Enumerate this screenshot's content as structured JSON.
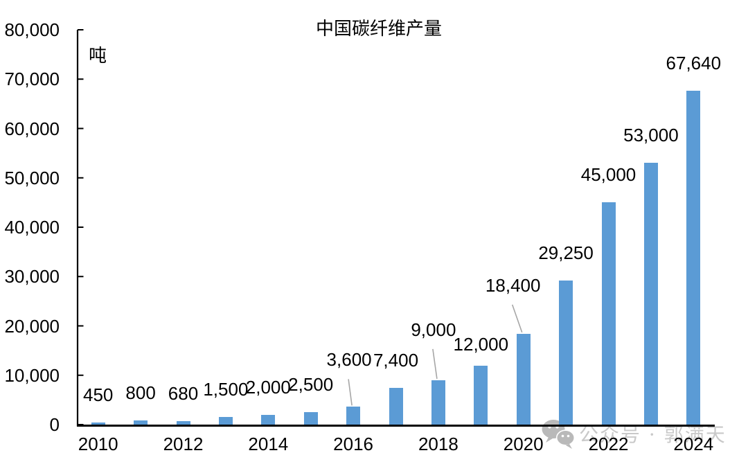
{
  "watermark": {
    "text": "公众号 · 郭满天",
    "icon": "wechat-icon",
    "text_color": "#c9c9c9"
  },
  "chart_data": {
    "type": "bar",
    "title": "中国碳纤维产量",
    "unit_label": "吨",
    "xlabel": "",
    "ylabel": "吨",
    "ylim": [
      0,
      80000
    ],
    "y_tick_step": 10000,
    "y_tick_labels": [
      "0",
      "10,000",
      "20,000",
      "30,000",
      "40,000",
      "50,000",
      "60,000",
      "70,000",
      "80,000"
    ],
    "x_tick_years": [
      "2010",
      "2012",
      "2014",
      "2016",
      "2018",
      "2020",
      "2022",
      "2024"
    ],
    "grid": "off",
    "legend": "none",
    "bar_color": "#5B9BD5",
    "axis_color": "#000000",
    "leader_line_color": "#a6a6a6",
    "categories": [
      2010,
      2011,
      2012,
      2013,
      2014,
      2015,
      2016,
      2017,
      2018,
      2019,
      2020,
      2021,
      2022,
      2023,
      2024
    ],
    "values": [
      450,
      800,
      680,
      1500,
      2000,
      2500,
      3600,
      7400,
      9000,
      12000,
      18400,
      29250,
      45000,
      53000,
      67640
    ],
    "points": [
      {
        "year": 2010,
        "value": 450,
        "label": "450"
      },
      {
        "year": 2011,
        "value": 800,
        "label": "800"
      },
      {
        "year": 2012,
        "value": 680,
        "label": "680"
      },
      {
        "year": 2013,
        "value": 1500,
        "label": "1,500"
      },
      {
        "year": 2014,
        "value": 2000,
        "label": "2,000"
      },
      {
        "year": 2015,
        "value": 2500,
        "label": "2,500"
      },
      {
        "year": 2016,
        "value": 3600,
        "label": "3,600",
        "leader": true,
        "label_dx": -6,
        "label_lift": 28
      },
      {
        "year": 2017,
        "value": 7400,
        "label": "7,400"
      },
      {
        "year": 2018,
        "value": 9000,
        "label": "9,000",
        "leader": true,
        "label_dx": -7,
        "label_lift": 33
      },
      {
        "year": 2019,
        "value": 12000,
        "label": "12,000",
        "label_lift": -9
      },
      {
        "year": 2020,
        "value": 18400,
        "label": "18,400",
        "leader": true,
        "label_dx": -15,
        "label_lift": 30
      },
      {
        "year": 2021,
        "value": 29250,
        "label": "29,250"
      },
      {
        "year": 2022,
        "value": 45000,
        "label": "45,000"
      },
      {
        "year": 2023,
        "value": 53000,
        "label": "53,000"
      },
      {
        "year": 2024,
        "value": 67640,
        "label": "67,640"
      }
    ]
  }
}
